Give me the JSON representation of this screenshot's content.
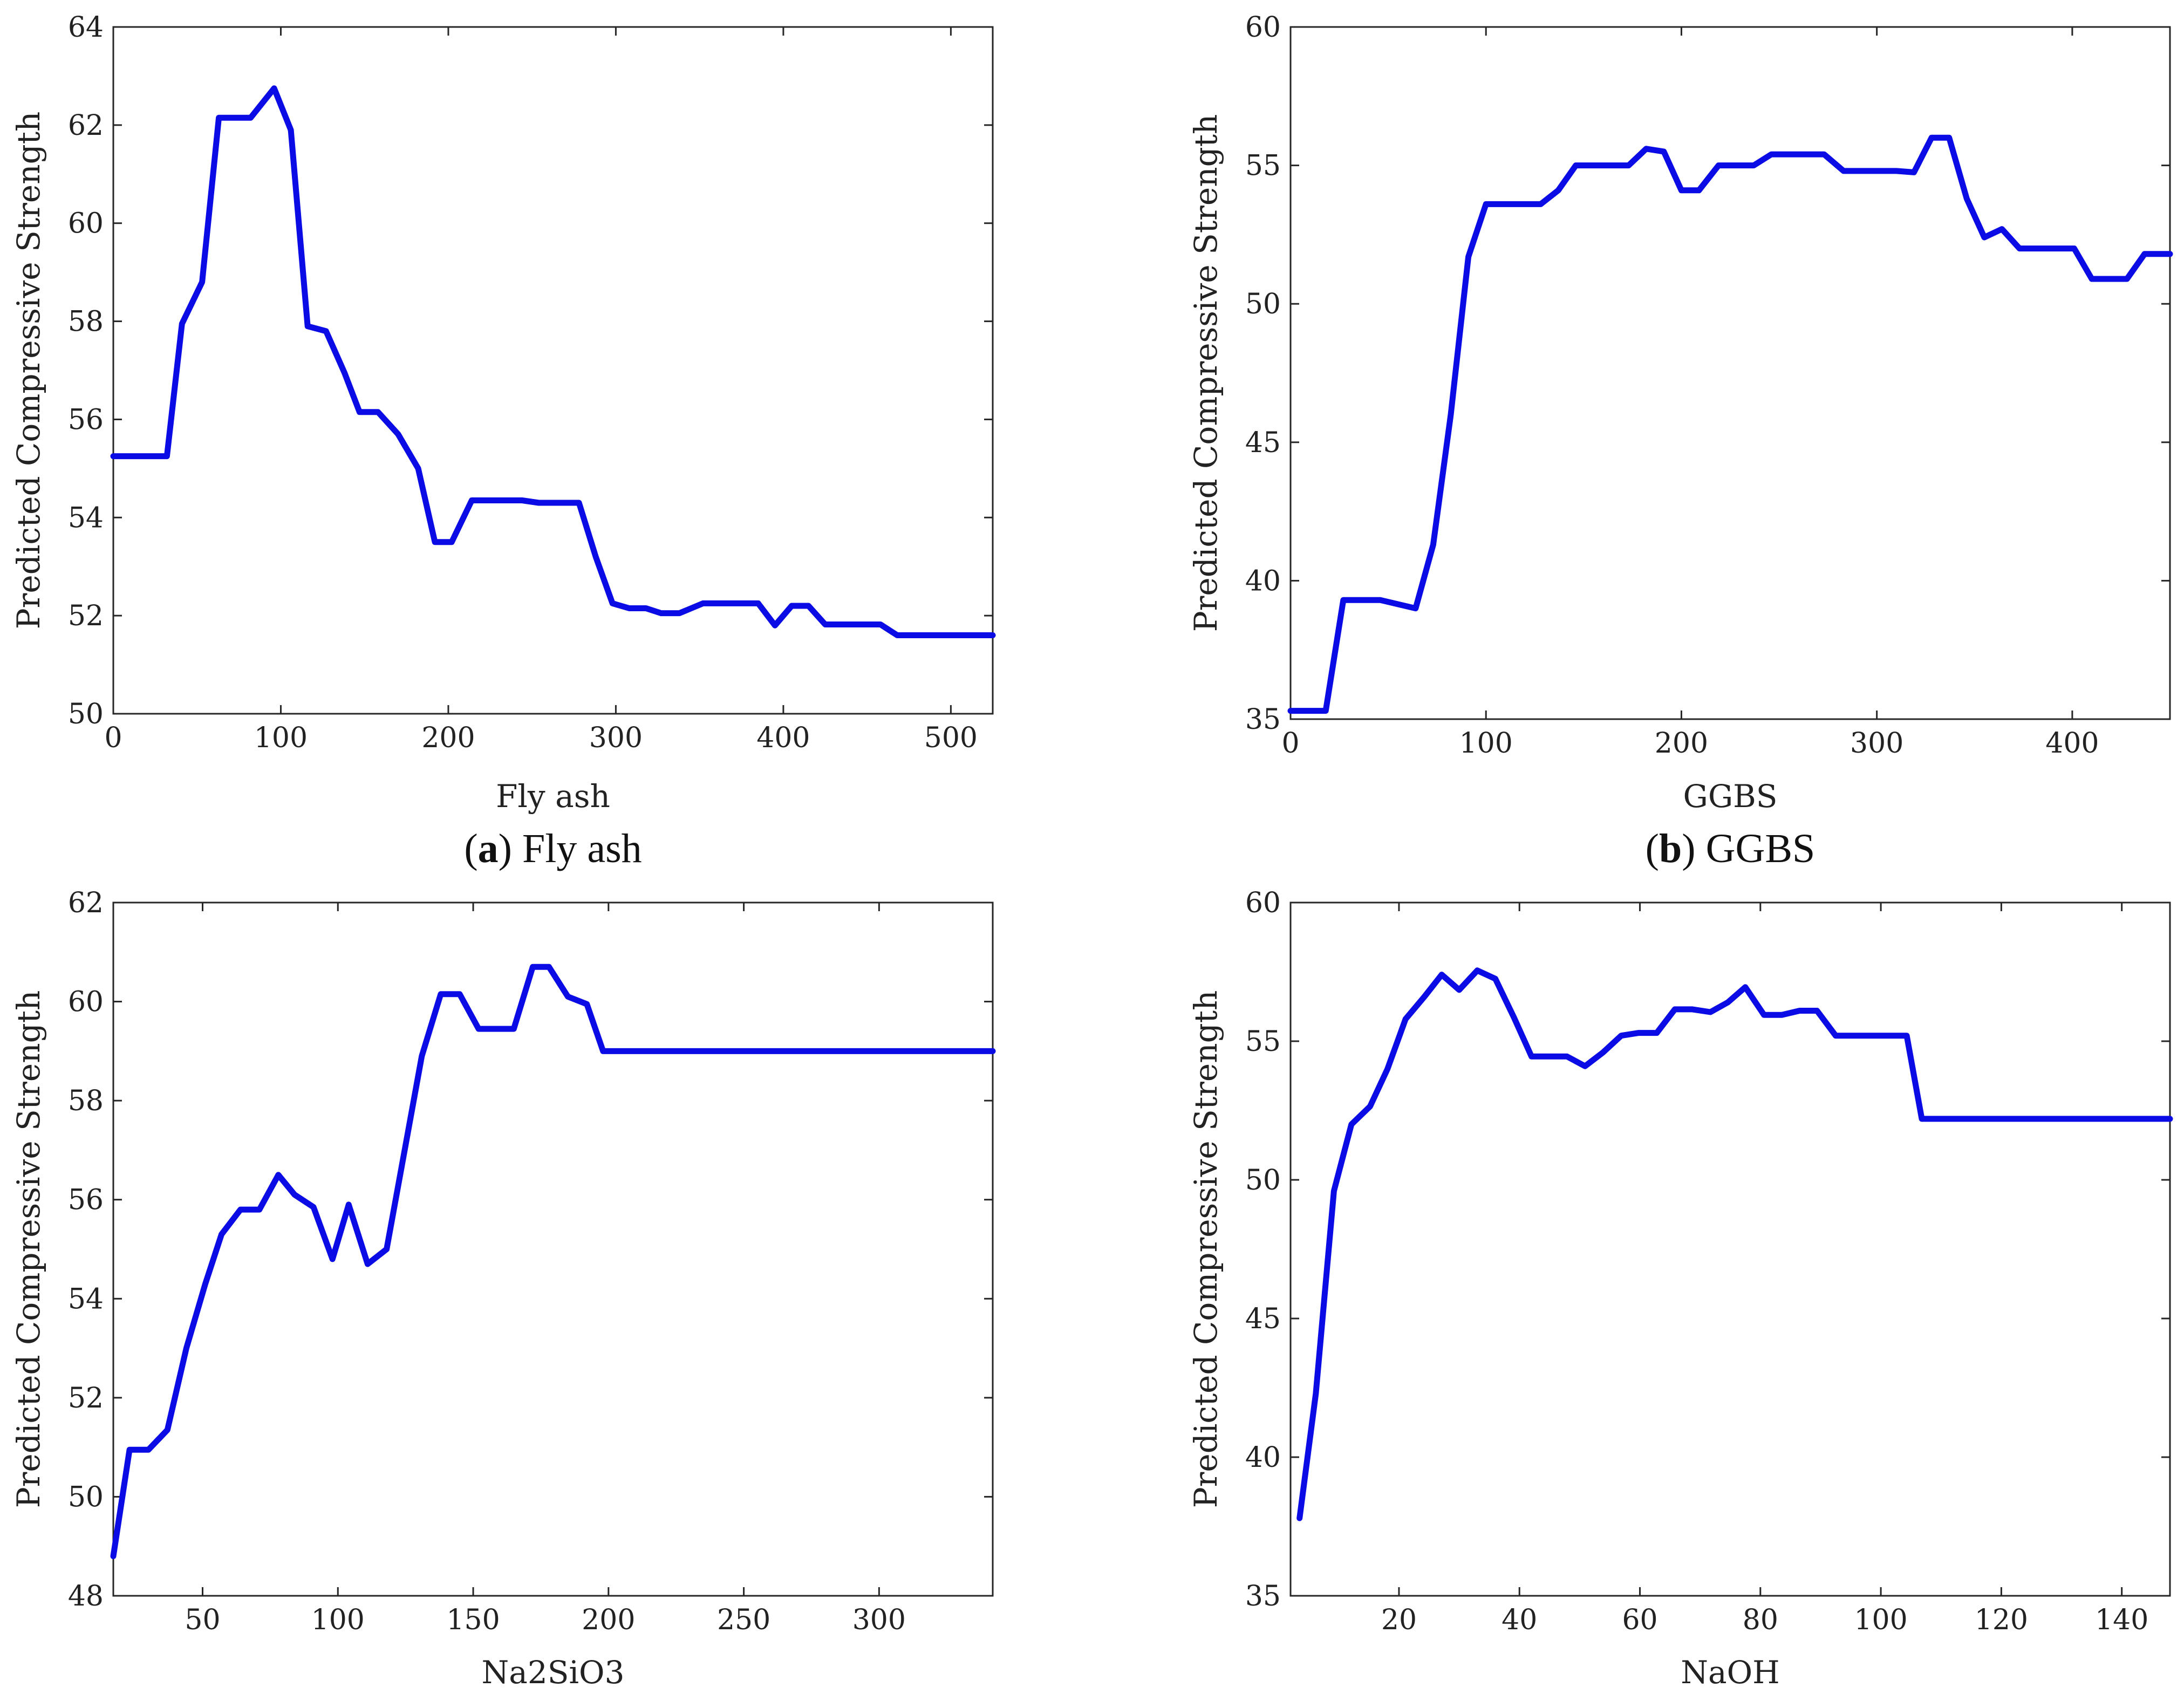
{
  "chart_data": [
    {
      "type": "line",
      "caption_letter": "a",
      "caption_text": "Fly ash",
      "xlabel": "Fly ash",
      "ylabel": "Predicted Compressive Strength",
      "xlim": [
        0,
        525
      ],
      "ylim": [
        50,
        64
      ],
      "xticks": [
        0,
        100,
        200,
        300,
        400,
        500
      ],
      "yticks": [
        50,
        52,
        54,
        56,
        58,
        60,
        62,
        64
      ],
      "color": "#0b0be6",
      "x": [
        0,
        32,
        41,
        53,
        63,
        82,
        96,
        106,
        116,
        127,
        138,
        147,
        158,
        170,
        182,
        192,
        202,
        214,
        244,
        254,
        278,
        288,
        298,
        308,
        318,
        327,
        338,
        352,
        385,
        395,
        405,
        415,
        425,
        458,
        468,
        525
      ],
      "y": [
        55.25,
        55.25,
        57.95,
        58.8,
        62.15,
        62.15,
        62.75,
        61.9,
        57.9,
        57.8,
        56.95,
        56.15,
        56.15,
        55.7,
        55.0,
        53.5,
        53.5,
        54.35,
        54.35,
        54.3,
        54.3,
        53.2,
        52.25,
        52.15,
        52.15,
        52.05,
        52.05,
        52.25,
        52.25,
        51.8,
        52.2,
        52.2,
        51.82,
        51.82,
        51.6,
        51.6
      ]
    },
    {
      "type": "line",
      "caption_letter": "b",
      "caption_text": "GGBS",
      "xlabel": "GGBS",
      "ylabel": "Predicted Compressive Strength",
      "xlim": [
        0,
        450
      ],
      "ylim": [
        35,
        60
      ],
      "xticks": [
        0,
        100,
        200,
        300,
        400
      ],
      "yticks": [
        35,
        40,
        45,
        50,
        55,
        60
      ],
      "color": "#0b0be6",
      "x": [
        0,
        18,
        27,
        46,
        64,
        73,
        82,
        91,
        100,
        128,
        137,
        146,
        173,
        182,
        191,
        200,
        209,
        219,
        237,
        246,
        273,
        283,
        310,
        319,
        328,
        337,
        346,
        355,
        364,
        373,
        401,
        410,
        428,
        437,
        450
      ],
      "y": [
        35.3,
        35.3,
        39.3,
        39.3,
        39.0,
        41.3,
        46.0,
        51.7,
        53.6,
        53.6,
        54.1,
        55.0,
        55.0,
        55.6,
        55.5,
        54.1,
        54.1,
        55.0,
        55.0,
        55.4,
        55.4,
        54.8,
        54.8,
        54.75,
        56.0,
        56.0,
        53.8,
        52.4,
        52.7,
        52.0,
        52.0,
        50.9,
        50.9,
        51.8,
        51.8
      ]
    },
    {
      "type": "line",
      "caption_letter": "c",
      "caption_text": "Na2SiO3",
      "xlabel": "Na2SiO3",
      "ylabel": "Predicted Compressive Strength",
      "xlim": [
        17,
        342
      ],
      "ylim": [
        48,
        62
      ],
      "xticks": [
        50,
        100,
        150,
        200,
        250,
        300
      ],
      "yticks": [
        48,
        50,
        52,
        54,
        56,
        58,
        60,
        62
      ],
      "color": "#0b0be6",
      "x": [
        17,
        23,
        30,
        37,
        44,
        51,
        57,
        64,
        71,
        78,
        84,
        91,
        98,
        104,
        111,
        118,
        125,
        131,
        138,
        145,
        152,
        165,
        172,
        178,
        185,
        192,
        198,
        342
      ],
      "y": [
        48.8,
        50.95,
        50.95,
        51.35,
        53.0,
        54.3,
        55.3,
        55.8,
        55.8,
        56.5,
        56.1,
        55.85,
        54.8,
        55.9,
        54.7,
        55.0,
        57.1,
        58.9,
        60.15,
        60.15,
        59.45,
        59.45,
        60.7,
        60.7,
        60.1,
        59.95,
        59.0,
        59.0
      ]
    },
    {
      "type": "line",
      "caption_letter": "d",
      "caption_text": "NaOH",
      "xlabel": "NaOH",
      "ylabel": "Predicted Compressive Strength",
      "xlim": [
        2,
        148
      ],
      "ylim": [
        35,
        60
      ],
      "xticks": [
        20,
        40,
        60,
        80,
        100,
        120,
        140
      ],
      "yticks": [
        35,
        40,
        45,
        50,
        55,
        60
      ],
      "color": "#0b0be6",
      "x": [
        3.5,
        6.2,
        9.2,
        12.1,
        15.2,
        18.1,
        21.1,
        24.2,
        27.1,
        30.0,
        33.0,
        36.0,
        39.1,
        42.0,
        47.9,
        50.9,
        53.9,
        56.9,
        59.8,
        62.8,
        65.8,
        68.7,
        71.7,
        74.6,
        77.5,
        80.6,
        83.6,
        86.5,
        89.4,
        92.5,
        95.5,
        104.3,
        106.8,
        148
      ],
      "y": [
        37.8,
        42.3,
        49.6,
        52.0,
        52.65,
        54.0,
        55.8,
        56.6,
        57.4,
        56.85,
        57.55,
        57.25,
        55.85,
        54.45,
        54.45,
        54.1,
        54.6,
        55.2,
        55.3,
        55.3,
        56.15,
        56.15,
        56.05,
        56.4,
        56.95,
        55.95,
        55.95,
        56.1,
        56.1,
        55.2,
        55.2,
        55.2,
        52.2,
        52.2
      ]
    }
  ]
}
